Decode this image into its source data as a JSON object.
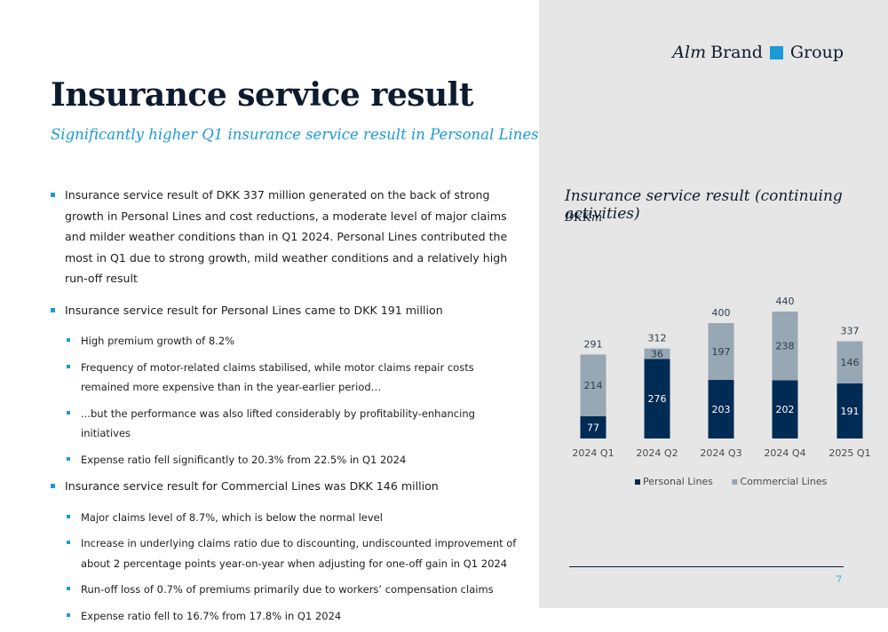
{
  "header": {
    "title": "Insurance service result",
    "subtitle": "Significantly higher Q1 insurance service result in Personal Lines"
  },
  "logo": {
    "part1": "Alm",
    "part2": "Brand",
    "part3": "Group"
  },
  "bullets": [
    {
      "level": 1,
      "text": "Insurance service result of DKK 337 million generated on the back of strong growth in Personal Lines and cost reductions, a moderate level of major claims and milder weather conditions than in Q1 2024. Personal Lines contributed the most in Q1 due to strong growth, mild weather conditions and a relatively high run-off result"
    },
    {
      "level": 1,
      "text": "Insurance service result for Personal Lines came to DKK 191 million"
    },
    {
      "level": 2,
      "text": "High premium growth of 8.2%"
    },
    {
      "level": 2,
      "text": "Frequency of motor-related claims stabilised, while motor claims repair costs remained more expensive than in the year-earlier period…"
    },
    {
      "level": 2,
      "text": "...but the performance was also lifted considerably by profitability-enhancing initiatives"
    },
    {
      "level": 2,
      "text": "Expense ratio fell significantly to 20.3% from 22.5% in Q1 2024"
    },
    {
      "level": 1,
      "text": "Insurance service result for Commercial Lines was DKK 146 million"
    },
    {
      "level": 2,
      "text": "Major claims level of 8.7%, which is below the normal level"
    },
    {
      "level": 2,
      "text": "Increase in underlying claims ratio due to discounting, undiscounted improvement of about 2 percentage points year-on-year when adjusting for one-off gain in Q1 2024"
    },
    {
      "level": 2,
      "text": "Run-off loss of 0.7% of premiums primarily due to workers’ compensation claims"
    },
    {
      "level": 2,
      "text": "Expense ratio fell to 16.7% from 17.8% in Q1 2024"
    }
  ],
  "chart_data": {
    "type": "bar",
    "stacked": true,
    "title": "Insurance service result (continuing activities)",
    "unit": "DKKm",
    "categories": [
      "2024 Q1",
      "2024 Q2",
      "2024 Q3",
      "2024 Q4",
      "2025 Q1"
    ],
    "series": [
      {
        "name": "Personal Lines",
        "values": [
          77,
          276,
          203,
          202,
          191
        ],
        "color": "#002b54"
      },
      {
        "name": "Commercial Lines",
        "values": [
          214,
          36,
          197,
          238,
          146
        ],
        "color": "#97a7b4"
      }
    ],
    "totals": [
      291,
      312,
      400,
      440,
      337
    ],
    "ylim": [
      0,
      440
    ],
    "legend": "bottom",
    "grid": false
  },
  "footer": {
    "page_number": "7"
  }
}
